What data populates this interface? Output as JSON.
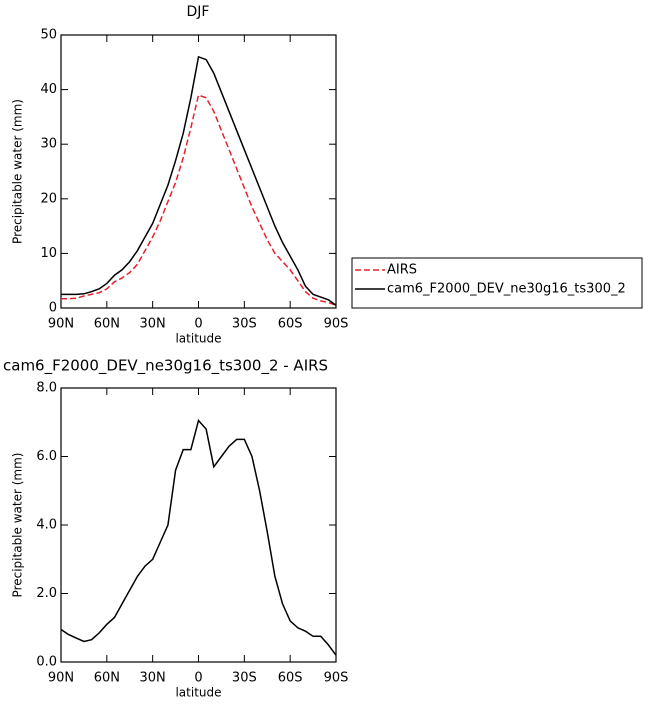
{
  "chart_data": [
    {
      "type": "line",
      "title": "DJF",
      "x_label": "latitude",
      "y_label": "Precipitable water (mm)",
      "x": [
        90,
        85,
        80,
        75,
        70,
        65,
        60,
        55,
        50,
        45,
        40,
        35,
        30,
        25,
        20,
        15,
        10,
        5,
        0,
        -5,
        -10,
        -15,
        -20,
        -25,
        -30,
        -35,
        -40,
        -45,
        -50,
        -55,
        -60,
        -65,
        -70,
        -75,
        -80,
        -85,
        -90
      ],
      "xlim": [
        90,
        -90
      ],
      "xticks": [
        {
          "value": 90,
          "label": "90N"
        },
        {
          "value": 60,
          "label": "60N"
        },
        {
          "value": 30,
          "label": "30N"
        },
        0,
        {
          "value": -30,
          "label": "30S"
        },
        {
          "value": -60,
          "label": "60S"
        },
        {
          "value": -90,
          "label": "90S"
        }
      ],
      "ylim": [
        0,
        50
      ],
      "yticks": [
        0,
        10,
        20,
        30,
        40,
        50
      ],
      "series": [
        {
          "name": "AIRS",
          "color": "#e8202a",
          "line_style": "dashed",
          "values": [
            1.7,
            1.7,
            1.8,
            2.2,
            2.5,
            2.8,
            3.5,
            4.8,
            5.5,
            6.5,
            8,
            10.5,
            13,
            16,
            19.5,
            23,
            27.5,
            33,
            39,
            38.5,
            36,
            32.5,
            29,
            25.5,
            22,
            18.5,
            15.5,
            12.5,
            10,
            8.5,
            7,
            5,
            3,
            1.8,
            1.3,
            1.0,
            0.5
          ]
        },
        {
          "name": "cam6_F2000_DEV_ne30g16_ts300_2",
          "color": "#000000",
          "line_style": "solid",
          "values": [
            2.5,
            2.5,
            2.5,
            2.6,
            3,
            3.5,
            4.5,
            6,
            7,
            8.5,
            10.5,
            13,
            15.5,
            19,
            22.5,
            27,
            32,
            38.5,
            46,
            45.5,
            43,
            39.5,
            36,
            32.5,
            29,
            25.5,
            22,
            18.5,
            15,
            12,
            9.5,
            7,
            4,
            2.5,
            2,
            1.5,
            0.5
          ]
        }
      ]
    },
    {
      "type": "line",
      "title": "cam6_F2000_DEV_ne30g16_ts300_2 - AIRS",
      "x_label": "latitude",
      "y_label": "Precipitable water (mm)",
      "x": [
        90,
        85,
        80,
        75,
        70,
        65,
        60,
        55,
        50,
        45,
        40,
        35,
        30,
        25,
        20,
        15,
        10,
        5,
        0,
        -5,
        -10,
        -15,
        -20,
        -25,
        -30,
        -35,
        -40,
        -45,
        -50,
        -55,
        -60,
        -65,
        -70,
        -75,
        -80,
        -85,
        -90
      ],
      "xlim": [
        90,
        -90
      ],
      "xticks": [
        {
          "value": 90,
          "label": "90N"
        },
        {
          "value": 60,
          "label": "60N"
        },
        {
          "value": 30,
          "label": "30N"
        },
        0,
        {
          "value": -30,
          "label": "30S"
        },
        {
          "value": -60,
          "label": "60S"
        },
        {
          "value": -90,
          "label": "90S"
        }
      ],
      "ylim": [
        0,
        8
      ],
      "yticks": [
        {
          "value": 0,
          "label": "0.0"
        },
        {
          "value": 2,
          "label": "2.0"
        },
        {
          "value": 4,
          "label": "4.0"
        },
        {
          "value": 6,
          "label": "6.0"
        },
        {
          "value": 8,
          "label": "8.0"
        }
      ],
      "series": [
        {
          "color": "#000000",
          "line_style": "solid",
          "values": [
            0.95,
            0.8,
            0.7,
            0.6,
            0.65,
            0.85,
            1.1,
            1.3,
            1.7,
            2.1,
            2.5,
            2.8,
            3.0,
            3.5,
            4.0,
            5.6,
            6.2,
            6.2,
            7.05,
            6.8,
            5.7,
            6.0,
            6.3,
            6.5,
            6.5,
            6.0,
            5.0,
            3.8,
            2.5,
            1.7,
            1.2,
            1.0,
            0.9,
            0.75,
            0.75,
            0.5,
            0.2
          ]
        }
      ]
    }
  ]
}
